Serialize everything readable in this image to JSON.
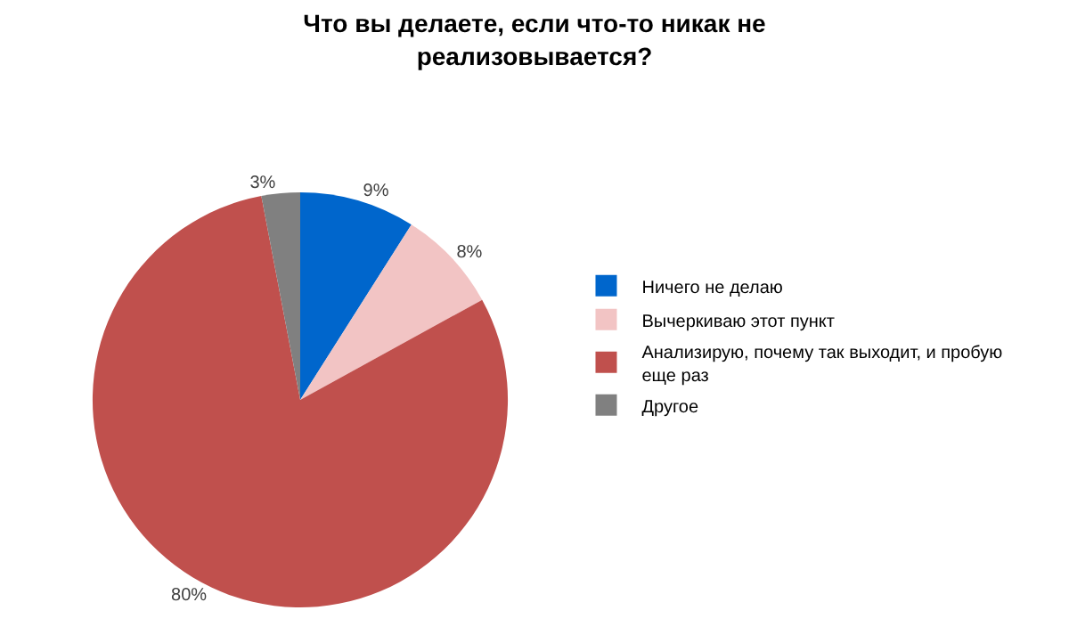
{
  "chart_data": {
    "type": "pie",
    "title": "Что вы делаете, если что-то никак не реализовывается?",
    "categories": [
      "Ничего не делаю",
      "Вычеркиваю этот пункт",
      "Анализирую, почему так выходит, и пробую еще раз",
      "Другое"
    ],
    "values": [
      9,
      8,
      80,
      3
    ],
    "colors": [
      "#0066cc",
      "#f2c4c4",
      "#c0504d",
      "#808080"
    ],
    "value_labels": [
      "9%",
      "8%",
      "80%",
      "3%"
    ],
    "legend": "right"
  }
}
